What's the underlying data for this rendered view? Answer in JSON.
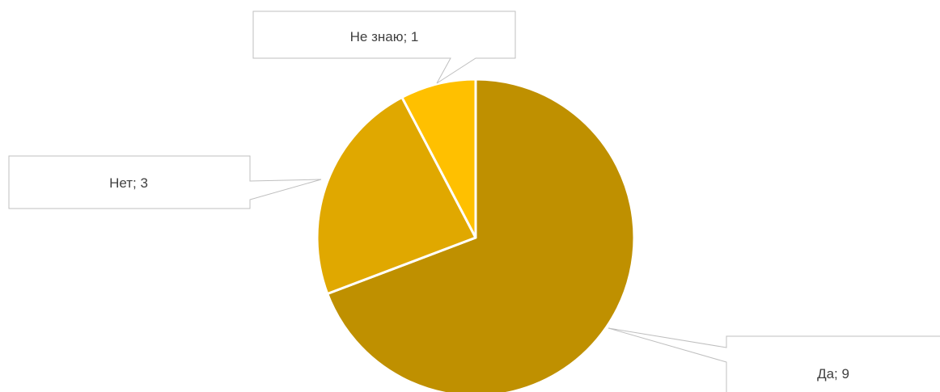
{
  "chart_data": {
    "type": "pie",
    "slices": [
      {
        "category": "Да",
        "value": 9,
        "label": "Да; 9",
        "color": "#BF9000"
      },
      {
        "category": "Нет",
        "value": 3,
        "label": "Нет; 3",
        "color": "#E0A800"
      },
      {
        "category": "Не знаю",
        "value": 1,
        "label": "Не знаю; 1",
        "color": "#FFC000"
      }
    ],
    "legend": false
  }
}
